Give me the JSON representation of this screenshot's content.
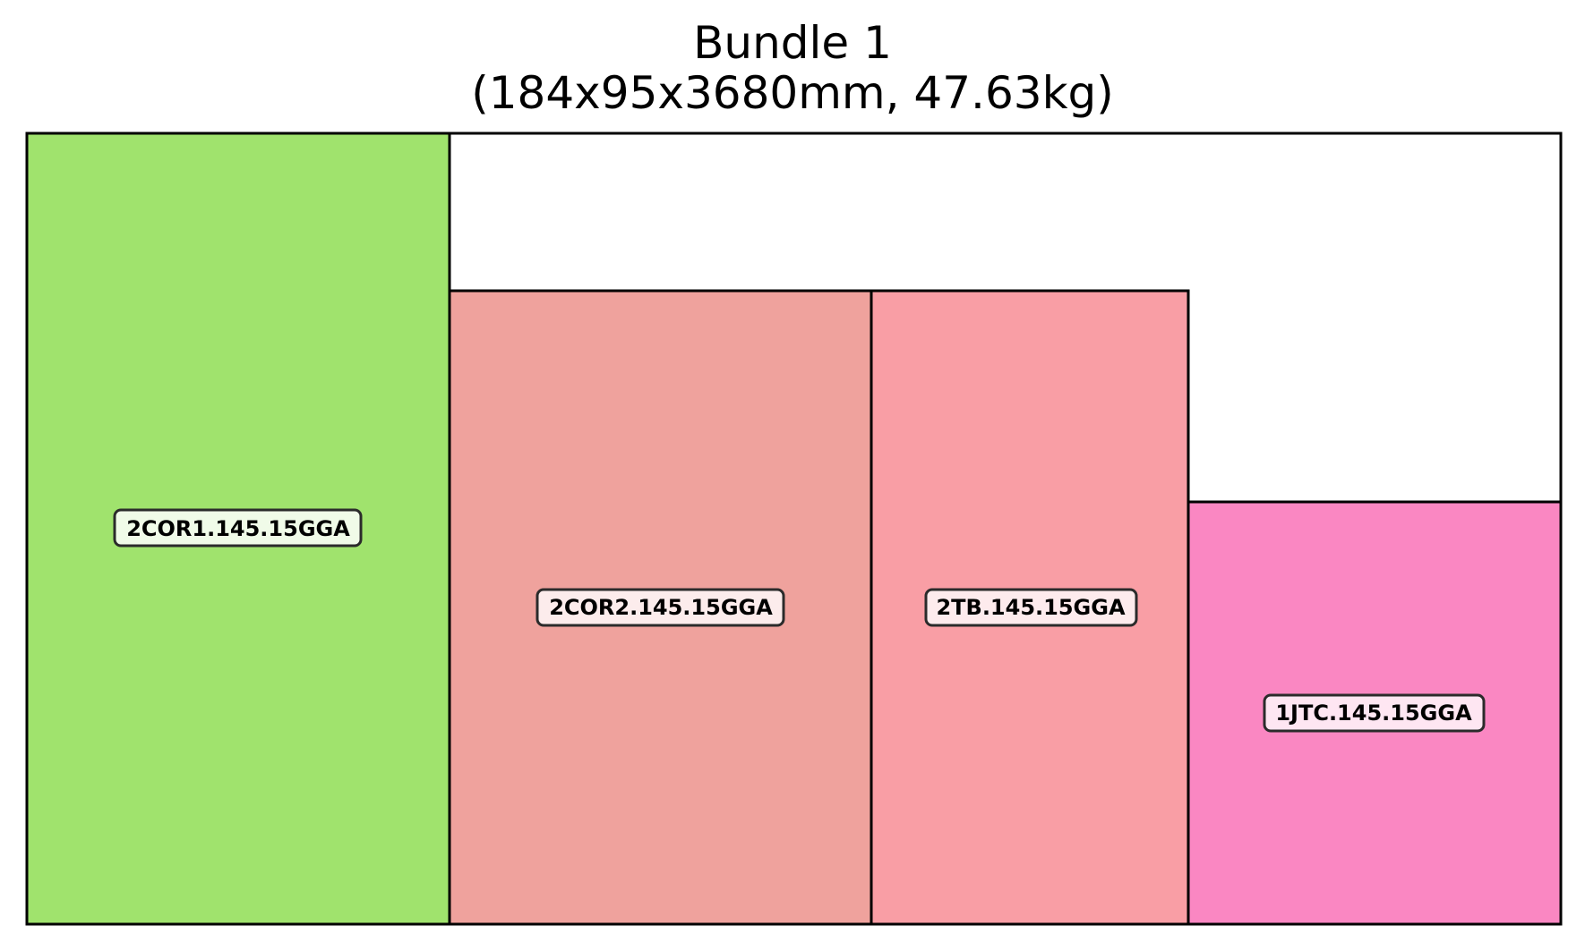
{
  "title": {
    "line1": "Bundle 1",
    "line2": "(184x95x3680mm, 47.63kg)"
  },
  "bundle": {
    "width_mm": 184,
    "height_mm": 95,
    "length_mm": 3680,
    "weight_kg": 47.63
  },
  "pieces": [
    {
      "label": "2COR1.145.15GGA",
      "color": "#a0e36d"
    },
    {
      "label": "2COR2.145.15GGA",
      "color": "#efa29d"
    },
    {
      "label": "2TB.145.15GGA",
      "color": "#f99ea5"
    },
    {
      "label": "1JTC.145.15GGA",
      "color": "#fa87c2"
    }
  ],
  "label_box_fills": [
    "#f0fbe8",
    "#fcecec",
    "#fdebed",
    "#fee6f2"
  ]
}
